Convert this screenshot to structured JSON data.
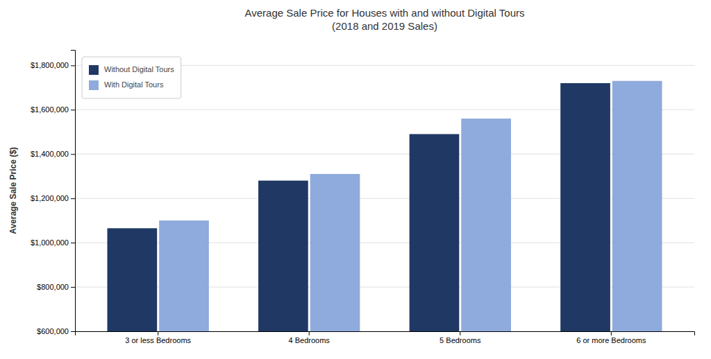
{
  "chart_data": {
    "type": "bar",
    "title": "Average Sale Price for Houses with and without Digital Tours\n(2018 and 2019 Sales)",
    "ylabel": "Average Sale Price ($)",
    "categories": [
      "3 or less Bedrooms",
      "4 Bedrooms",
      "5 Bedrooms",
      "6 or more Bedrooms"
    ],
    "series": [
      {
        "name": "Without Digital Tours",
        "color": "#1F3864",
        "values": [
          1065000,
          1280000,
          1490000,
          1720000
        ]
      },
      {
        "name": "With Digital Tours",
        "color": "#8FAADC",
        "values": [
          1100000,
          1310000,
          1560000,
          1730000
        ]
      }
    ],
    "ylim": [
      600000,
      1870000
    ],
    "yticks": [
      {
        "value": 600000,
        "label": "$600,000"
      },
      {
        "value": 800000,
        "label": "$800,000"
      },
      {
        "value": 1000000,
        "label": "$1,000,000"
      },
      {
        "value": 1200000,
        "label": "$1,200,000"
      },
      {
        "value": 1400000,
        "label": "$1,400,000"
      },
      {
        "value": 1600000,
        "label": "$1,600,000"
      },
      {
        "value": 1800000,
        "label": "$1,800,000"
      }
    ],
    "grid": true,
    "legend": "upper left"
  }
}
